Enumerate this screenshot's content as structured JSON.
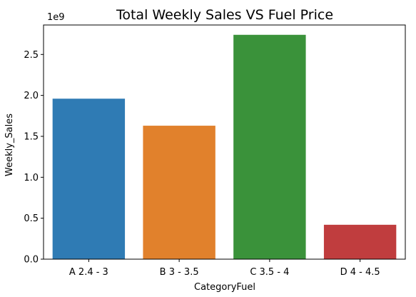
{
  "chart_data": {
    "type": "bar",
    "title": "Total Weekly Sales VS Fuel Price",
    "xlabel": "CategoryFuel",
    "ylabel": "Weekly_Sales",
    "y_offset_label": "1e9",
    "categories": [
      "A 2.4 - 3",
      "B 3 - 3.5",
      "C 3.5 - 4",
      "D 4 - 4.5"
    ],
    "values": [
      1.96,
      1.63,
      2.74,
      0.42
    ],
    "value_unit_multiplier": 1000000000,
    "colors": [
      "#2f7bb4",
      "#e1812c",
      "#3a923a",
      "#c03d3e"
    ],
    "ylim": [
      0,
      2.86
    ],
    "yticks": [
      0.0,
      0.5,
      1.0,
      1.5,
      2.0,
      2.5
    ],
    "ytick_labels": [
      "0.0",
      "0.5",
      "1.0",
      "1.5",
      "2.0",
      "2.5"
    ],
    "grid": false,
    "legend": "none"
  }
}
